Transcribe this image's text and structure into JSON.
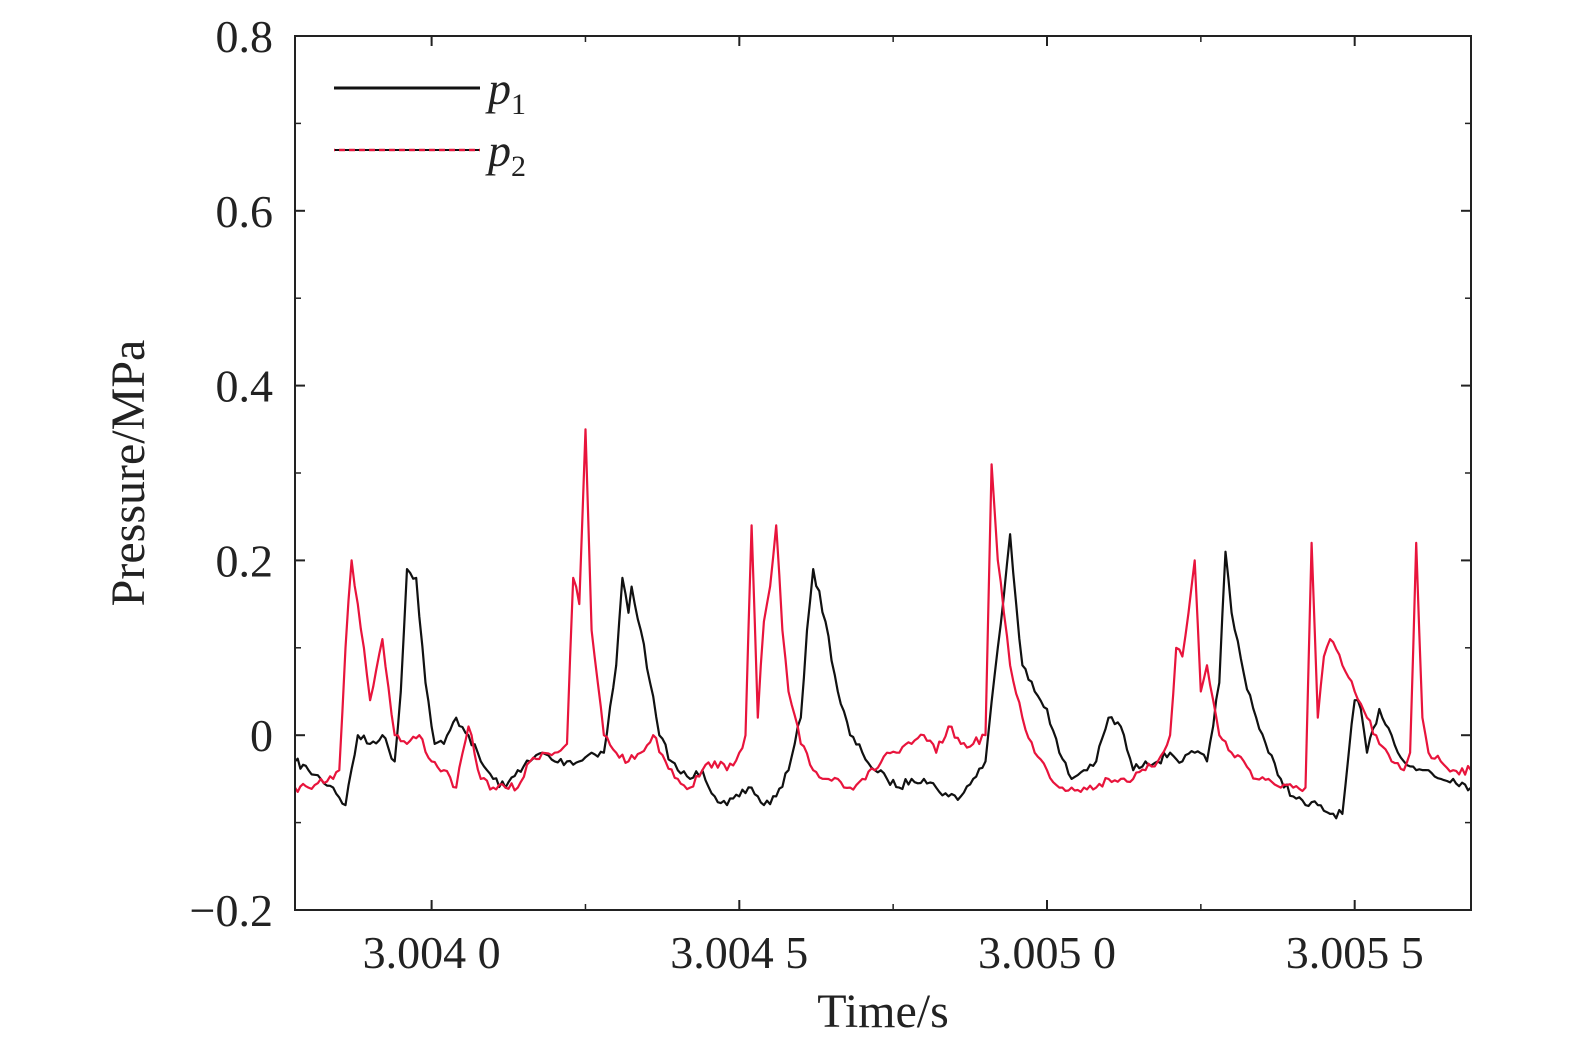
{
  "chart_data": {
    "type": "line",
    "title": "",
    "xlabel": "Time/s",
    "ylabel": "Pressure/MPa",
    "xlim": [
      3.003778,
      3.005689
    ],
    "ylim": [
      -0.2,
      0.8
    ],
    "x_ticks": [
      {
        "value": 3.004,
        "label": "3.004 0"
      },
      {
        "value": 3.0045,
        "label": "3.004 5"
      },
      {
        "value": 3.005,
        "label": "3.005 0"
      },
      {
        "value": 3.0055,
        "label": "3.005 5"
      }
    ],
    "y_ticks": [
      {
        "value": 0.8,
        "label": "0.8"
      },
      {
        "value": 0.6,
        "label": "0.6"
      },
      {
        "value": 0.4,
        "label": "0.4"
      },
      {
        "value": 0.2,
        "label": "0.2"
      },
      {
        "value": 0.0,
        "label": "0"
      },
      {
        "value": -0.2,
        "label": "−0.2"
      }
    ],
    "legend": {
      "position": "top-left",
      "entries": [
        {
          "base": "p",
          "sub": "1",
          "color": "#111111",
          "style": "solid"
        },
        {
          "base": "p",
          "sub": "2",
          "color": "#e8143c",
          "style": "dashed"
        }
      ]
    },
    "series": [
      {
        "name": "p1",
        "color": "#111111",
        "x": [
          3.003778,
          3.0038,
          3.00382,
          3.00384,
          3.00386,
          3.00388,
          3.0039,
          3.00392,
          3.00394,
          3.00395,
          3.00396,
          3.003975,
          3.00399,
          3.004005,
          3.00402,
          3.00404,
          3.00406,
          3.00408,
          3.0041,
          3.00412,
          3.00414,
          3.00416,
          3.00418,
          3.0042,
          3.00422,
          3.00424,
          3.00426,
          3.00428,
          3.0043,
          3.00431,
          3.00432,
          3.004325,
          3.00434,
          3.004355,
          3.00437,
          3.00439,
          3.0044,
          3.00442,
          3.00444,
          3.00446,
          3.00448,
          3.0045,
          3.00452,
          3.00454,
          3.00456,
          3.00458,
          3.00459,
          3.0046,
          3.00461,
          3.00462,
          3.00464,
          3.00466,
          3.00468,
          3.0047,
          3.00472,
          3.00474,
          3.00476,
          3.00478,
          3.0048,
          3.00482,
          3.00484,
          3.00486,
          3.00488,
          3.0049,
          3.00492,
          3.00494,
          3.00495,
          3.00496,
          3.00498,
          3.005,
          3.00502,
          3.00504,
          3.00506,
          3.00508,
          3.0051,
          3.00512,
          3.00514,
          3.00516,
          3.00518,
          3.0052,
          3.00522,
          3.00524,
          3.00526,
          3.00528,
          3.00529,
          3.0053,
          3.00532,
          3.00534,
          3.00536,
          3.00538,
          3.0054,
          3.00542,
          3.00544,
          3.00546,
          3.00548,
          3.0055,
          3.00551,
          3.00552,
          3.00554,
          3.00556,
          3.00558,
          3.0056,
          3.00562,
          3.00564,
          3.00566,
          3.005689
        ],
        "y": [
          -0.03,
          -0.04,
          -0.05,
          -0.06,
          -0.08,
          0.0,
          -0.01,
          0.0,
          -0.03,
          0.05,
          0.19,
          0.18,
          0.06,
          -0.01,
          -0.01,
          0.02,
          0.0,
          -0.03,
          -0.05,
          -0.06,
          -0.04,
          -0.03,
          -0.02,
          -0.03,
          -0.03,
          -0.03,
          -0.02,
          -0.02,
          0.08,
          0.18,
          0.14,
          0.17,
          0.12,
          0.06,
          0.0,
          -0.03,
          -0.04,
          -0.05,
          -0.04,
          -0.07,
          -0.08,
          -0.07,
          -0.06,
          -0.08,
          -0.07,
          -0.04,
          -0.01,
          0.02,
          0.12,
          0.19,
          0.13,
          0.05,
          0.0,
          -0.02,
          -0.04,
          -0.05,
          -0.06,
          -0.05,
          -0.05,
          -0.06,
          -0.07,
          -0.07,
          -0.05,
          -0.03,
          0.1,
          0.23,
          0.15,
          0.08,
          0.05,
          0.03,
          -0.02,
          -0.05,
          -0.04,
          -0.03,
          0.02,
          0.01,
          -0.04,
          -0.03,
          -0.03,
          -0.02,
          -0.03,
          -0.02,
          -0.03,
          0.06,
          0.21,
          0.14,
          0.07,
          0.02,
          -0.02,
          -0.05,
          -0.07,
          -0.08,
          -0.08,
          -0.09,
          -0.09,
          0.04,
          0.03,
          -0.02,
          0.03,
          0.0,
          -0.03,
          -0.04,
          -0.04,
          -0.05,
          -0.05,
          -0.06
        ]
      },
      {
        "name": "p2",
        "color": "#e8143c",
        "x": [
          3.003778,
          3.0038,
          3.00382,
          3.00384,
          3.00385,
          3.00386,
          3.00387,
          3.00388,
          3.00389,
          3.0039,
          3.00392,
          3.00394,
          3.00396,
          3.00398,
          3.004,
          3.00402,
          3.00404,
          3.00406,
          3.00408,
          3.0041,
          3.00412,
          3.00414,
          3.00416,
          3.00418,
          3.0042,
          3.00422,
          3.00423,
          3.00424,
          3.00425,
          3.00426,
          3.00427,
          3.00428,
          3.0043,
          3.00432,
          3.00434,
          3.00436,
          3.00438,
          3.0044,
          3.00442,
          3.00444,
          3.00446,
          3.00448,
          3.0045,
          3.00451,
          3.00452,
          3.00453,
          3.00454,
          3.00455,
          3.00456,
          3.00457,
          3.00458,
          3.0046,
          3.00462,
          3.00464,
          3.00466,
          3.00468,
          3.0047,
          3.00472,
          3.00474,
          3.00476,
          3.00478,
          3.0048,
          3.00482,
          3.00484,
          3.00486,
          3.00488,
          3.0049,
          3.00491,
          3.00492,
          3.00493,
          3.00494,
          3.00496,
          3.00498,
          3.005,
          3.00502,
          3.00504,
          3.00506,
          3.00508,
          3.0051,
          3.00512,
          3.00514,
          3.00516,
          3.00518,
          3.0052,
          3.00521,
          3.00522,
          3.00523,
          3.00524,
          3.00525,
          3.00526,
          3.00528,
          3.0053,
          3.00532,
          3.00534,
          3.00536,
          3.00538,
          3.0054,
          3.00542,
          3.00543,
          3.00544,
          3.00545,
          3.00546,
          3.00548,
          3.0055,
          3.00552,
          3.00554,
          3.00556,
          3.00558,
          3.00559,
          3.0056,
          3.00561,
          3.00562,
          3.00564,
          3.00566,
          3.005689
        ],
        "y": [
          -0.06,
          -0.06,
          -0.05,
          -0.05,
          -0.04,
          0.1,
          0.2,
          0.15,
          0.1,
          0.04,
          0.11,
          0.0,
          -0.01,
          0.0,
          -0.03,
          -0.04,
          -0.06,
          0.01,
          -0.05,
          -0.06,
          -0.06,
          -0.06,
          -0.03,
          -0.02,
          -0.02,
          -0.01,
          0.18,
          0.15,
          0.35,
          0.12,
          0.06,
          0.0,
          -0.02,
          -0.03,
          -0.02,
          0.0,
          -0.03,
          -0.05,
          -0.06,
          -0.04,
          -0.03,
          -0.04,
          -0.02,
          0.0,
          0.24,
          0.02,
          0.13,
          0.17,
          0.24,
          0.12,
          0.05,
          -0.01,
          -0.04,
          -0.05,
          -0.05,
          -0.06,
          -0.05,
          -0.04,
          -0.02,
          -0.02,
          -0.01,
          0.0,
          -0.02,
          0.01,
          -0.01,
          -0.01,
          0.0,
          0.31,
          0.2,
          0.14,
          0.08,
          0.02,
          -0.02,
          -0.04,
          -0.06,
          -0.06,
          -0.06,
          -0.06,
          -0.05,
          -0.05,
          -0.05,
          -0.04,
          -0.03,
          0.0,
          0.1,
          0.09,
          0.14,
          0.2,
          0.05,
          0.08,
          0.0,
          -0.02,
          -0.03,
          -0.05,
          -0.05,
          -0.06,
          -0.06,
          -0.06,
          0.22,
          0.02,
          0.09,
          0.11,
          0.08,
          0.05,
          0.02,
          -0.01,
          -0.03,
          -0.04,
          -0.02,
          0.22,
          0.02,
          -0.02,
          -0.03,
          -0.04,
          -0.04
        ]
      }
    ]
  }
}
